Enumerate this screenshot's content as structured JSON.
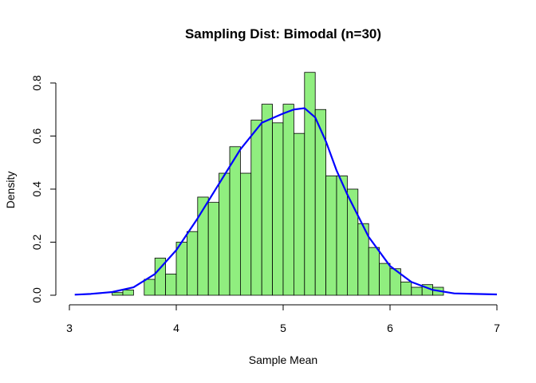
{
  "chart_data": {
    "type": "bar",
    "title": "Sampling Dist: Bimodal (n=30)",
    "xlabel": "Sample Mean",
    "ylabel": "Density",
    "xlim": [
      3,
      7
    ],
    "ylim": [
      0,
      0.8
    ],
    "x_ticks": [
      3,
      4,
      5,
      6,
      7
    ],
    "y_ticks": [
      0.0,
      0.2,
      0.4,
      0.6,
      0.8
    ],
    "x_tick_labels": [
      "3",
      "4",
      "5",
      "6",
      "7"
    ],
    "y_tick_labels": [
      "0.0",
      "0.2",
      "0.4",
      "0.6",
      "0.8"
    ],
    "bin_width": 0.1,
    "bins": [
      {
        "start": 3.0,
        "density": 0.0
      },
      {
        "start": 3.1,
        "density": 0.0
      },
      {
        "start": 3.2,
        "density": 0.0
      },
      {
        "start": 3.3,
        "density": 0.0
      },
      {
        "start": 3.4,
        "density": 0.01
      },
      {
        "start": 3.5,
        "density": 0.02
      },
      {
        "start": 3.6,
        "density": 0.0
      },
      {
        "start": 3.7,
        "density": 0.06
      },
      {
        "start": 3.8,
        "density": 0.14
      },
      {
        "start": 3.9,
        "density": 0.08
      },
      {
        "start": 4.0,
        "density": 0.2
      },
      {
        "start": 4.1,
        "density": 0.24
      },
      {
        "start": 4.2,
        "density": 0.37
      },
      {
        "start": 4.3,
        "density": 0.35
      },
      {
        "start": 4.4,
        "density": 0.46
      },
      {
        "start": 4.5,
        "density": 0.56
      },
      {
        "start": 4.6,
        "density": 0.46
      },
      {
        "start": 4.7,
        "density": 0.66
      },
      {
        "start": 4.8,
        "density": 0.72
      },
      {
        "start": 4.9,
        "density": 0.65
      },
      {
        "start": 5.0,
        "density": 0.72
      },
      {
        "start": 5.1,
        "density": 0.61
      },
      {
        "start": 5.2,
        "density": 0.84
      },
      {
        "start": 5.3,
        "density": 0.7
      },
      {
        "start": 5.4,
        "density": 0.45
      },
      {
        "start": 5.5,
        "density": 0.45
      },
      {
        "start": 5.6,
        "density": 0.4
      },
      {
        "start": 5.7,
        "density": 0.27
      },
      {
        "start": 5.8,
        "density": 0.18
      },
      {
        "start": 5.9,
        "density": 0.12
      },
      {
        "start": 6.0,
        "density": 0.1
      },
      {
        "start": 6.1,
        "density": 0.05
      },
      {
        "start": 6.2,
        "density": 0.03
      },
      {
        "start": 6.3,
        "density": 0.04
      },
      {
        "start": 6.4,
        "density": 0.03
      },
      {
        "start": 6.5,
        "density": 0.0
      }
    ],
    "density_curve": {
      "x": [
        3.05,
        3.2,
        3.4,
        3.6,
        3.8,
        4.0,
        4.2,
        4.4,
        4.6,
        4.8,
        5.0,
        5.1,
        5.2,
        5.3,
        5.4,
        5.5,
        5.6,
        5.8,
        6.0,
        6.2,
        6.4,
        6.6,
        6.8,
        7.0
      ],
      "y": [
        0.002,
        0.005,
        0.012,
        0.03,
        0.08,
        0.17,
        0.29,
        0.42,
        0.55,
        0.65,
        0.685,
        0.7,
        0.705,
        0.67,
        0.58,
        0.47,
        0.38,
        0.22,
        0.11,
        0.05,
        0.02,
        0.007,
        0.005,
        0.003
      ]
    },
    "colors": {
      "bar_fill": "#90EE7F",
      "bar_stroke": "#000000",
      "density_line": "#0000FF"
    },
    "grid": false,
    "legend": "none"
  }
}
